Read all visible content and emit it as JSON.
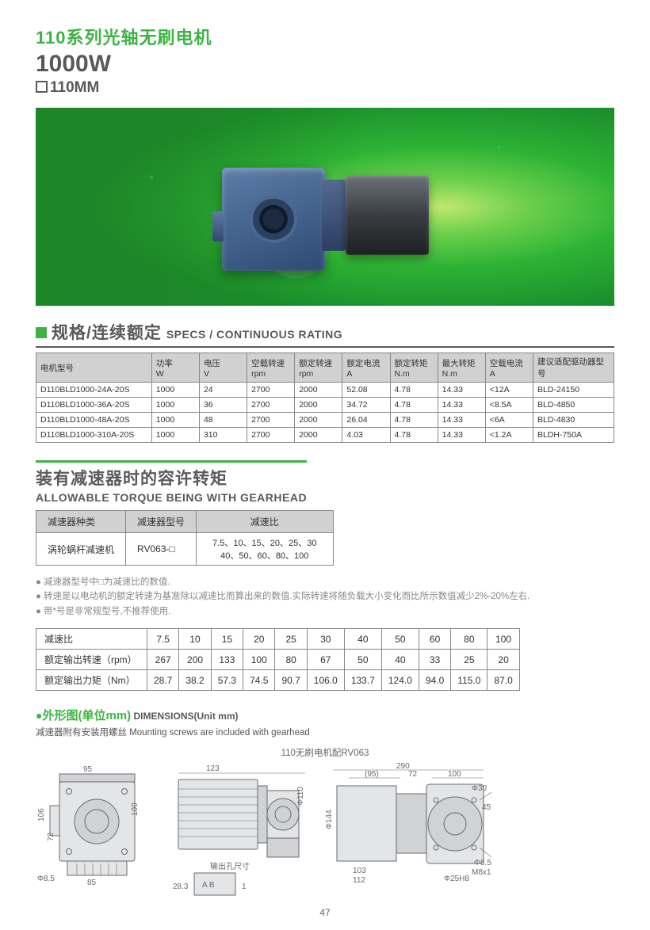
{
  "header": {
    "series": "110系列光轴无刷电机",
    "watt": "1000W",
    "size": "110MM"
  },
  "specs_section": {
    "title_cn": "规格/连续额定",
    "title_en": "SPECS / CONTINUOUS RATING",
    "columns": [
      {
        "cn": "电机型号",
        "unit": ""
      },
      {
        "cn": "功率",
        "unit": "W"
      },
      {
        "cn": "电压",
        "unit": "V"
      },
      {
        "cn": "空载转速",
        "unit": "rpm"
      },
      {
        "cn": "额定转速",
        "unit": "rpm"
      },
      {
        "cn": "额定电流",
        "unit": "A"
      },
      {
        "cn": "额定转矩",
        "unit": "N.m"
      },
      {
        "cn": "最大转矩",
        "unit": "N.m"
      },
      {
        "cn": "空载电流",
        "unit": "A"
      },
      {
        "cn": "建议适配驱动器型号",
        "unit": ""
      }
    ],
    "rows": [
      [
        "D110BLD1000-24A-20S",
        "1000",
        "24",
        "2700",
        "2000",
        "52.08",
        "4.78",
        "14.33",
        "<12A",
        "BLD-24150"
      ],
      [
        "D110BLD1000-36A-20S",
        "1000",
        "36",
        "2700",
        "2000",
        "34.72",
        "4.78",
        "14.33",
        "<8.5A",
        "BLD-4850"
      ],
      [
        "D110BLD1000-48A-20S",
        "1000",
        "48",
        "2700",
        "2000",
        "26.04",
        "4.78",
        "14.33",
        "<6A",
        "BLD-4830"
      ],
      [
        "D110BLD1000-310A-20S",
        "1000",
        "310",
        "2700",
        "2000",
        "4.03",
        "4.78",
        "14.33",
        "<1.2A",
        "BLDH-750A"
      ]
    ]
  },
  "gearhead_section": {
    "title_cn": "装有减速器时的容许转矩",
    "title_en": "ALLOWABLE TORQUE BEING WITH GEARHEAD",
    "headers": [
      "减速器种类",
      "减速器型号",
      "减速比"
    ],
    "row": {
      "type": "涡轮蜗杆减速机",
      "model": "RV063-□",
      "ratios": "7.5、10、15、20、25、30\n40、50、60、80、100"
    }
  },
  "notes": [
    "减速器型号中□为减速比的数值.",
    "转速是以电动机的额定转速为基准除以减速比而算出来的数值.实际转速将随负载大小变化而比所示数值减少2%-20%左右.",
    "带*号是非常规型号,不推荐使用."
  ],
  "ratio_table": {
    "row_labels": [
      "减速比",
      "额定输出转速（rpm）",
      "额定输出力矩（Nm）"
    ],
    "ratios": [
      "7.5",
      "10",
      "15",
      "20",
      "25",
      "30",
      "40",
      "50",
      "60",
      "80",
      "100"
    ],
    "rpm": [
      "267",
      "200",
      "133",
      "100",
      "80",
      "67",
      "50",
      "40",
      "33",
      "25",
      "20"
    ],
    "nm": [
      "28.7",
      "38.2",
      "57.3",
      "74.5",
      "90.7",
      "106.0",
      "133.7",
      "124.0",
      "94.0",
      "115.0",
      "87.0"
    ]
  },
  "dimensions": {
    "dot": "●",
    "title_cn": "外形图(单位mm)",
    "title_en": "DIMENSIONS(Unit mm)",
    "subtitle": "减速器附有安装用螺丝 Mounting screws are included with gearhead",
    "drawing_title": "110无刷电机配RV063",
    "labels": {
      "w290": "290",
      "w123": "123",
      "w95": "(95)",
      "w72": "72",
      "w100": "100",
      "h100": "100",
      "h95": "95",
      "d110": "Φ110",
      "shaft": "输出孔尺寸",
      "ab": "A    B",
      "one": "1",
      "h72": "72",
      "h106": "106",
      "w85": "85",
      "w103": "103",
      "w112": "112",
      "d85": "Φ8.5",
      "t283": "28.3",
      "d144": "Φ144",
      "d25": "Φ25H8",
      "d30": "Φ30",
      "r45": "45°",
      "d85r": "Φ8.5",
      "m8": "M8x14"
    }
  },
  "pagenum": "47",
  "colors": {
    "accent": "#3db442",
    "text": "#595959",
    "border": "#888888",
    "th_bg": "#d1d1d1"
  }
}
